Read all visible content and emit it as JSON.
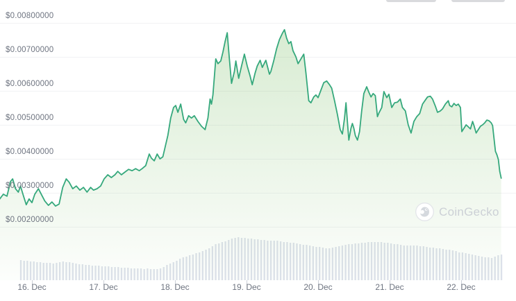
{
  "chart": {
    "watermark_text": "CoinGecko",
    "colors": {
      "line": "#35a87c",
      "area_fill": "#7dbf69",
      "gridline": "#f1f2f4",
      "volume_bar": "#dde1eb",
      "tick": "#ccd0d8",
      "axis_label": "#6e7480",
      "watermark": "#ccd0d6",
      "cropped_button": "#d9dadd"
    }
  },
  "chart_data": {
    "type": "line",
    "title": "",
    "legend": "none",
    "grid": "horizontal only",
    "x_axis": {
      "unit": "date",
      "labels": [
        "16. Dec",
        "17. Dec",
        "18. Dec",
        "19. Dec",
        "20. Dec",
        "21. Dec",
        "22. Dec"
      ]
    },
    "y_axis": {
      "unit": "USD",
      "labels": [
        "$0.00800000",
        "$0.00700000",
        "$0.00600000",
        "$0.00500000",
        "$0.00400000",
        "$0.00300000",
        "$0.00200000"
      ],
      "prices": [
        0.008,
        0.007,
        0.006,
        0.005,
        0.004,
        0.003,
        0.002
      ]
    },
    "price_series": {
      "name": "price",
      "x_unit": "day of December",
      "points": [
        [
          15.55,
          0.00282
        ],
        [
          15.6,
          0.00296
        ],
        [
          15.65,
          0.0029
        ],
        [
          15.7,
          0.00333
        ],
        [
          15.73,
          0.00341
        ],
        [
          15.77,
          0.00312
        ],
        [
          15.81,
          0.00302
        ],
        [
          15.84,
          0.0032
        ],
        [
          15.88,
          0.00292
        ],
        [
          15.92,
          0.00265
        ],
        [
          15.96,
          0.00282
        ],
        [
          16.0,
          0.00271
        ],
        [
          16.04,
          0.00296
        ],
        [
          16.09,
          0.00312
        ],
        [
          16.14,
          0.00292
        ],
        [
          16.18,
          0.00276
        ],
        [
          16.23,
          0.00263
        ],
        [
          16.28,
          0.00273
        ],
        [
          16.33,
          0.00261
        ],
        [
          16.38,
          0.00267
        ],
        [
          16.43,
          0.00316
        ],
        [
          16.48,
          0.00341
        ],
        [
          16.52,
          0.00331
        ],
        [
          16.57,
          0.00312
        ],
        [
          16.62,
          0.0032
        ],
        [
          16.67,
          0.00308
        ],
        [
          16.72,
          0.00316
        ],
        [
          16.77,
          0.00302
        ],
        [
          16.82,
          0.00316
        ],
        [
          16.86,
          0.00308
        ],
        [
          16.91,
          0.00312
        ],
        [
          16.96,
          0.0032
        ],
        [
          17.01,
          0.00341
        ],
        [
          17.06,
          0.00353
        ],
        [
          17.11,
          0.00345
        ],
        [
          17.16,
          0.00353
        ],
        [
          17.2,
          0.00363
        ],
        [
          17.25,
          0.00353
        ],
        [
          17.3,
          0.00361
        ],
        [
          17.35,
          0.00369
        ],
        [
          17.4,
          0.00365
        ],
        [
          17.45,
          0.00371
        ],
        [
          17.5,
          0.00365
        ],
        [
          17.54,
          0.00371
        ],
        [
          17.59,
          0.0038
        ],
        [
          17.64,
          0.00414
        ],
        [
          17.67,
          0.00402
        ],
        [
          17.71,
          0.00394
        ],
        [
          17.75,
          0.00414
        ],
        [
          17.79,
          0.004
        ],
        [
          17.83,
          0.00406
        ],
        [
          17.86,
          0.00433
        ],
        [
          17.9,
          0.00469
        ],
        [
          17.94,
          0.0052
        ],
        [
          17.98,
          0.00551
        ],
        [
          18.01,
          0.00557
        ],
        [
          18.04,
          0.00537
        ],
        [
          18.08,
          0.00561
        ],
        [
          18.12,
          0.00516
        ],
        [
          18.15,
          0.00506
        ],
        [
          18.19,
          0.00527
        ],
        [
          18.23,
          0.0052
        ],
        [
          18.27,
          0.00527
        ],
        [
          18.32,
          0.0051
        ],
        [
          18.37,
          0.00496
        ],
        [
          18.42,
          0.00486
        ],
        [
          18.46,
          0.0052
        ],
        [
          18.49,
          0.00576
        ],
        [
          18.51,
          0.00561
        ],
        [
          18.53,
          0.00588
        ],
        [
          18.57,
          0.00694
        ],
        [
          18.6,
          0.0068
        ],
        [
          18.64,
          0.00688
        ],
        [
          18.67,
          0.00714
        ],
        [
          18.7,
          0.00745
        ],
        [
          18.73,
          0.00771
        ],
        [
          18.76,
          0.00694
        ],
        [
          18.79,
          0.00622
        ],
        [
          18.83,
          0.00657
        ],
        [
          18.85,
          0.00688
        ],
        [
          18.89,
          0.00637
        ],
        [
          18.93,
          0.00673
        ],
        [
          18.97,
          0.00708
        ],
        [
          19.01,
          0.00673
        ],
        [
          19.05,
          0.00643
        ],
        [
          19.08,
          0.00618
        ],
        [
          19.12,
          0.00653
        ],
        [
          19.15,
          0.00673
        ],
        [
          19.19,
          0.0069
        ],
        [
          19.22,
          0.00669
        ],
        [
          19.27,
          0.0069
        ],
        [
          19.32,
          0.00649
        ],
        [
          19.34,
          0.00657
        ],
        [
          19.38,
          0.00688
        ],
        [
          19.42,
          0.00724
        ],
        [
          19.46,
          0.00751
        ],
        [
          19.5,
          0.00769
        ],
        [
          19.53,
          0.0078
        ],
        [
          19.56,
          0.00755
        ],
        [
          19.59,
          0.00739
        ],
        [
          19.62,
          0.00745
        ],
        [
          19.65,
          0.00718
        ],
        [
          19.69,
          0.007
        ],
        [
          19.72,
          0.0068
        ],
        [
          19.76,
          0.00694
        ],
        [
          19.8,
          0.00708
        ],
        [
          19.83,
          0.00653
        ],
        [
          19.87,
          0.00571
        ],
        [
          19.9,
          0.00565
        ],
        [
          19.94,
          0.00582
        ],
        [
          19.97,
          0.00588
        ],
        [
          20.0,
          0.0058
        ],
        [
          20.04,
          0.00602
        ],
        [
          20.08,
          0.00624
        ],
        [
          20.12,
          0.00629
        ],
        [
          20.16,
          0.00618
        ],
        [
          20.19,
          0.00608
        ],
        [
          20.23,
          0.00571
        ],
        [
          20.27,
          0.00531
        ],
        [
          20.31,
          0.00486
        ],
        [
          20.34,
          0.00473
        ],
        [
          20.37,
          0.0052
        ],
        [
          20.39,
          0.00565
        ],
        [
          20.41,
          0.0051
        ],
        [
          20.43,
          0.00455
        ],
        [
          20.46,
          0.0049
        ],
        [
          20.48,
          0.00504
        ],
        [
          20.5,
          0.0049
        ],
        [
          20.52,
          0.00469
        ],
        [
          20.55,
          0.00455
        ],
        [
          20.58,
          0.0048
        ],
        [
          20.61,
          0.00541
        ],
        [
          20.64,
          0.00592
        ],
        [
          20.68,
          0.00612
        ],
        [
          20.71,
          0.00596
        ],
        [
          20.74,
          0.00582
        ],
        [
          20.77,
          0.00592
        ],
        [
          20.8,
          0.00586
        ],
        [
          20.83,
          0.00524
        ],
        [
          20.85,
          0.00535
        ],
        [
          20.89,
          0.00551
        ],
        [
          20.92,
          0.00598
        ],
        [
          20.96,
          0.0058
        ],
        [
          20.99,
          0.0059
        ],
        [
          21.03,
          0.00551
        ],
        [
          21.07,
          0.00565
        ],
        [
          21.11,
          0.00567
        ],
        [
          21.15,
          0.00576
        ],
        [
          21.18,
          0.00551
        ],
        [
          21.22,
          0.00541
        ],
        [
          21.26,
          0.005
        ],
        [
          21.3,
          0.00476
        ],
        [
          21.34,
          0.0051
        ],
        [
          21.38,
          0.00524
        ],
        [
          21.42,
          0.00533
        ],
        [
          21.46,
          0.00561
        ],
        [
          21.5,
          0.00573
        ],
        [
          21.53,
          0.00582
        ],
        [
          21.57,
          0.00584
        ],
        [
          21.6,
          0.00576
        ],
        [
          21.64,
          0.00555
        ],
        [
          21.67,
          0.00537
        ],
        [
          21.71,
          0.00541
        ],
        [
          21.74,
          0.00547
        ],
        [
          21.78,
          0.00561
        ],
        [
          21.82,
          0.00571
        ],
        [
          21.84,
          0.00557
        ],
        [
          21.87,
          0.00553
        ],
        [
          21.9,
          0.00563
        ],
        [
          21.93,
          0.00557
        ],
        [
          21.96,
          0.00561
        ],
        [
          21.99,
          0.00551
        ],
        [
          22.01,
          0.0048
        ],
        [
          22.04,
          0.0049
        ],
        [
          22.07,
          0.005
        ],
        [
          22.1,
          0.00494
        ],
        [
          22.13,
          0.00488
        ],
        [
          22.16,
          0.0051
        ],
        [
          22.18,
          0.00498
        ],
        [
          22.21,
          0.00476
        ],
        [
          22.24,
          0.00486
        ],
        [
          22.27,
          0.00496
        ],
        [
          22.3,
          0.005
        ],
        [
          22.33,
          0.00506
        ],
        [
          22.36,
          0.00514
        ],
        [
          22.39,
          0.00512
        ],
        [
          22.42,
          0.00506
        ],
        [
          22.44,
          0.00498
        ],
        [
          22.46,
          0.00459
        ],
        [
          22.48,
          0.00422
        ],
        [
          22.5,
          0.00412
        ],
        [
          22.52,
          0.00398
        ],
        [
          22.54,
          0.00363
        ],
        [
          22.56,
          0.00343
        ]
      ]
    },
    "volume_series": {
      "name": "volume",
      "note": "relative bar heights (px), left-to-right under price line",
      "values": [
        29,
        28,
        28,
        27,
        27,
        26,
        26,
        25,
        25,
        25,
        24,
        25,
        26,
        27,
        26,
        26,
        25,
        24,
        23,
        23,
        22,
        22,
        21,
        21,
        21,
        20,
        20,
        20,
        19,
        19,
        19,
        18,
        18,
        18,
        17,
        17,
        17,
        17,
        16,
        17,
        16,
        16,
        16,
        17,
        19,
        22,
        24,
        26,
        28,
        31,
        33,
        34,
        36,
        37,
        39,
        40,
        42,
        44,
        46,
        49,
        52,
        53,
        55,
        56,
        58,
        60,
        61,
        62,
        61,
        61,
        60,
        60,
        59,
        59,
        58,
        58,
        57,
        57,
        57,
        57,
        56,
        55,
        55,
        54,
        54,
        53,
        52,
        51,
        51,
        50,
        49,
        48,
        48,
        47,
        46,
        46,
        47,
        48,
        49,
        50,
        51,
        52,
        52,
        53,
        53,
        54,
        54,
        55,
        55,
        55,
        55,
        55,
        54,
        54,
        53,
        52,
        52,
        51,
        50,
        50,
        50,
        50,
        50,
        49,
        49,
        48,
        47,
        47,
        46,
        46,
        45,
        44,
        44,
        43,
        42,
        40,
        40,
        39,
        38,
        37,
        36,
        35,
        34,
        33,
        33,
        32,
        34,
        36,
        37
      ]
    }
  }
}
